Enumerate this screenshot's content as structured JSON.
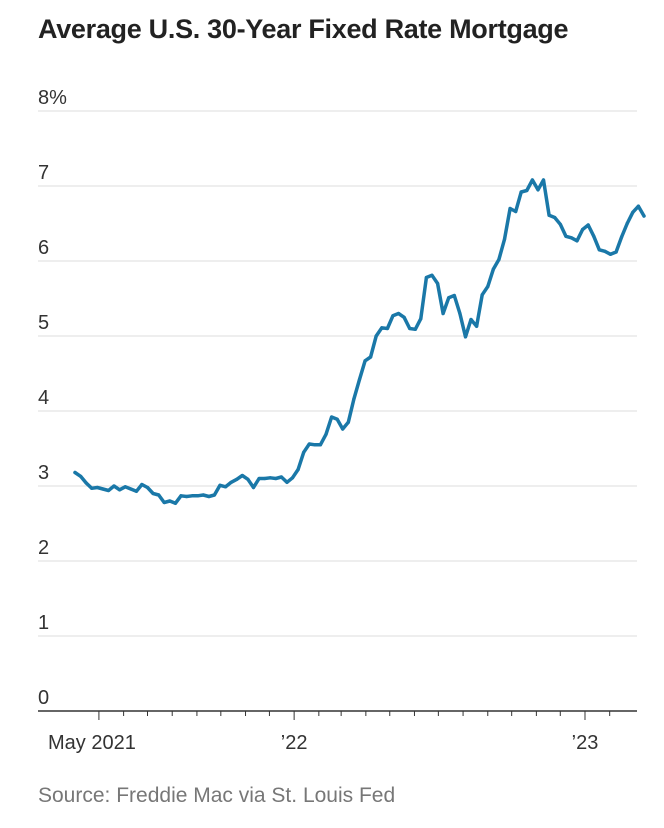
{
  "chart_data": {
    "type": "line",
    "title": "Average U.S. 30-Year Fixed Rate Mortgage",
    "xlabel": "",
    "ylabel": "",
    "source": "Source: Freddie Mac via St. Louis Fed",
    "ylim": [
      0,
      8
    ],
    "y_ticks": [
      {
        "value": 8,
        "label": "8%"
      },
      {
        "value": 7,
        "label": "7"
      },
      {
        "value": 6,
        "label": "6"
      },
      {
        "value": 5,
        "label": "5"
      },
      {
        "value": 4,
        "label": "4"
      },
      {
        "value": 3,
        "label": "3"
      },
      {
        "value": 2,
        "label": "2"
      },
      {
        "value": 1,
        "label": "1"
      },
      {
        "value": 0,
        "label": "0"
      }
    ],
    "x_range": [
      "2021-04-01",
      "2023-03-01"
    ],
    "x_tick_labels": [
      {
        "date": "2021-05-01",
        "label": "May 2021"
      },
      {
        "date": "2022-01-01",
        "label": "’22"
      },
      {
        "date": "2023-01-01",
        "label": "’23"
      }
    ],
    "x_month_ticks": [
      "2021-05-01",
      "2021-06-01",
      "2021-07-01",
      "2021-08-01",
      "2021-09-01",
      "2021-10-01",
      "2021-11-01",
      "2021-12-01",
      "2022-01-01",
      "2022-02-01",
      "2022-03-01",
      "2022-04-01",
      "2022-05-01",
      "2022-06-01",
      "2022-07-01",
      "2022-08-01",
      "2022-09-01",
      "2022-10-01",
      "2022-11-01",
      "2022-12-01",
      "2023-01-01",
      "2023-02-01"
    ],
    "grid": true,
    "line_color": "#1a78a8",
    "series": [
      {
        "points": [
          [
            "2021-04-01",
            3.18
          ],
          [
            "2021-04-08",
            3.13
          ],
          [
            "2021-04-15",
            3.04
          ],
          [
            "2021-04-22",
            2.97
          ],
          [
            "2021-04-29",
            2.98
          ],
          [
            "2021-05-06",
            2.96
          ],
          [
            "2021-05-13",
            2.94
          ],
          [
            "2021-05-20",
            3.0
          ],
          [
            "2021-05-27",
            2.95
          ],
          [
            "2021-06-03",
            2.99
          ],
          [
            "2021-06-10",
            2.96
          ],
          [
            "2021-06-17",
            2.93
          ],
          [
            "2021-06-24",
            3.02
          ],
          [
            "2021-07-01",
            2.98
          ],
          [
            "2021-07-08",
            2.9
          ],
          [
            "2021-07-15",
            2.88
          ],
          [
            "2021-07-22",
            2.78
          ],
          [
            "2021-07-29",
            2.8
          ],
          [
            "2021-08-05",
            2.77
          ],
          [
            "2021-08-12",
            2.87
          ],
          [
            "2021-08-19",
            2.86
          ],
          [
            "2021-08-26",
            2.87
          ],
          [
            "2021-09-02",
            2.87
          ],
          [
            "2021-09-09",
            2.88
          ],
          [
            "2021-09-16",
            2.86
          ],
          [
            "2021-09-23",
            2.88
          ],
          [
            "2021-09-30",
            3.01
          ],
          [
            "2021-10-07",
            2.99
          ],
          [
            "2021-10-14",
            3.05
          ],
          [
            "2021-10-21",
            3.09
          ],
          [
            "2021-10-28",
            3.14
          ],
          [
            "2021-11-04",
            3.09
          ],
          [
            "2021-11-11",
            2.98
          ],
          [
            "2021-11-18",
            3.1
          ],
          [
            "2021-11-25",
            3.1
          ],
          [
            "2021-12-02",
            3.11
          ],
          [
            "2021-12-09",
            3.1
          ],
          [
            "2021-12-16",
            3.12
          ],
          [
            "2021-12-23",
            3.05
          ],
          [
            "2021-12-30",
            3.11
          ],
          [
            "2022-01-06",
            3.22
          ],
          [
            "2022-01-13",
            3.45
          ],
          [
            "2022-01-20",
            3.56
          ],
          [
            "2022-01-27",
            3.55
          ],
          [
            "2022-02-03",
            3.55
          ],
          [
            "2022-02-10",
            3.69
          ],
          [
            "2022-02-17",
            3.92
          ],
          [
            "2022-02-24",
            3.89
          ],
          [
            "2022-03-03",
            3.76
          ],
          [
            "2022-03-10",
            3.85
          ],
          [
            "2022-03-17",
            4.16
          ],
          [
            "2022-03-24",
            4.42
          ],
          [
            "2022-03-31",
            4.67
          ],
          [
            "2022-04-07",
            4.72
          ],
          [
            "2022-04-14",
            5.0
          ],
          [
            "2022-04-21",
            5.11
          ],
          [
            "2022-04-28",
            5.1
          ],
          [
            "2022-05-05",
            5.27
          ],
          [
            "2022-05-12",
            5.3
          ],
          [
            "2022-05-19",
            5.25
          ],
          [
            "2022-05-26",
            5.1
          ],
          [
            "2022-06-02",
            5.09
          ],
          [
            "2022-06-09",
            5.23
          ],
          [
            "2022-06-16",
            5.78
          ],
          [
            "2022-06-23",
            5.81
          ],
          [
            "2022-06-30",
            5.7
          ],
          [
            "2022-07-07",
            5.3
          ],
          [
            "2022-07-14",
            5.51
          ],
          [
            "2022-07-21",
            5.54
          ],
          [
            "2022-07-28",
            5.3
          ],
          [
            "2022-08-04",
            4.99
          ],
          [
            "2022-08-11",
            5.22
          ],
          [
            "2022-08-18",
            5.13
          ],
          [
            "2022-08-25",
            5.55
          ],
          [
            "2022-09-01",
            5.66
          ],
          [
            "2022-09-08",
            5.89
          ],
          [
            "2022-09-15",
            6.02
          ],
          [
            "2022-09-22",
            6.29
          ],
          [
            "2022-09-29",
            6.7
          ],
          [
            "2022-10-06",
            6.66
          ],
          [
            "2022-10-13",
            6.92
          ],
          [
            "2022-10-20",
            6.94
          ],
          [
            "2022-10-27",
            7.08
          ],
          [
            "2022-11-03",
            6.95
          ],
          [
            "2022-11-10",
            7.08
          ],
          [
            "2022-11-17",
            6.61
          ],
          [
            "2022-11-24",
            6.58
          ],
          [
            "2022-12-01",
            6.49
          ],
          [
            "2022-12-08",
            6.33
          ],
          [
            "2022-12-15",
            6.31
          ],
          [
            "2022-12-22",
            6.27
          ],
          [
            "2022-12-29",
            6.42
          ],
          [
            "2023-01-05",
            6.48
          ],
          [
            "2023-01-12",
            6.33
          ],
          [
            "2023-01-19",
            6.15
          ],
          [
            "2023-01-26",
            6.13
          ],
          [
            "2023-02-02",
            6.09
          ],
          [
            "2023-02-09",
            6.12
          ],
          [
            "2023-02-16",
            6.32
          ],
          [
            "2023-02-23",
            6.5
          ],
          [
            "2023-03-02",
            6.65
          ],
          [
            "2023-03-09",
            6.73
          ],
          [
            "2023-03-16",
            6.6
          ]
        ]
      }
    ]
  }
}
